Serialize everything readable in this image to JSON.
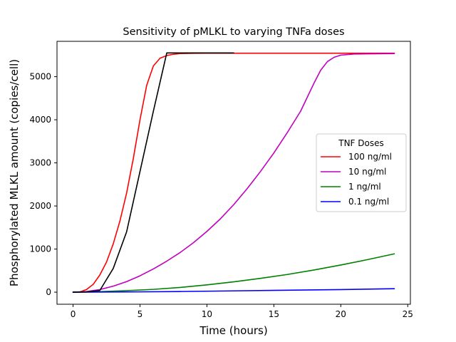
{
  "chart_data": {
    "type": "line",
    "title": "Sensitivity of pMLKL to varying TNFa doses",
    "xlabel": "Time (hours)",
    "ylabel": "Phosphorylated MLKL amount (copies/cell)",
    "xlim": [
      -1.2,
      25.2
    ],
    "ylim": [
      -280,
      5820
    ],
    "xticks": [
      0,
      5,
      10,
      15,
      20,
      25
    ],
    "yticks": [
      0,
      1000,
      2000,
      3000,
      4000,
      5000
    ],
    "grid": false,
    "legend": {
      "title": "TNF Doses",
      "placement": "center-right",
      "entries": [
        "100 ng/ml",
        "10 ng/ml",
        "1 ng/ml",
        "0.1 ng/ml"
      ]
    },
    "series": [
      {
        "name": "100 ng/ml",
        "color": "#ff0000",
        "x": [
          0,
          0.5,
          1,
          1.5,
          2,
          2.5,
          3,
          3.5,
          4,
          4.5,
          5,
          5.5,
          6,
          6.5,
          7,
          7.5,
          8,
          9,
          10,
          12,
          15,
          20,
          24
        ],
        "y": [
          0,
          5,
          60,
          180,
          400,
          700,
          1120,
          1650,
          2300,
          3100,
          4000,
          4800,
          5250,
          5430,
          5490,
          5520,
          5535,
          5542,
          5545,
          5545,
          5545,
          5545,
          5545
        ]
      },
      {
        "name": "10 ng/ml",
        "color": "#bf00bf",
        "x": [
          0,
          1,
          2,
          3,
          4,
          5,
          6,
          7,
          8,
          9,
          10,
          11,
          12,
          13,
          14,
          15,
          16,
          17,
          18,
          18.5,
          19,
          19.5,
          20,
          21,
          22,
          24
        ],
        "y": [
          0,
          15,
          60,
          140,
          245,
          380,
          540,
          720,
          920,
          1150,
          1410,
          1700,
          2030,
          2400,
          2800,
          3230,
          3700,
          4200,
          4850,
          5150,
          5350,
          5450,
          5500,
          5525,
          5530,
          5535
        ]
      },
      {
        "name": "1 ng/ml",
        "color": "#008000",
        "x": [
          0,
          2,
          4,
          6,
          8,
          10,
          12,
          14,
          16,
          18,
          20,
          22,
          24
        ],
        "y": [
          0,
          12,
          35,
          65,
          110,
          170,
          240,
          320,
          410,
          515,
          630,
          755,
          890
        ]
      },
      {
        "name": "0.1 ng/ml",
        "color": "#0000ff",
        "x": [
          0,
          4,
          8,
          12,
          16,
          20,
          24
        ],
        "y": [
          0,
          5,
          15,
          30,
          45,
          60,
          80
        ]
      },
      {
        "color": "#000000",
        "x": [
          0,
          1,
          2,
          3,
          4,
          5,
          6,
          7,
          8,
          9,
          10,
          11,
          12
        ],
        "y": [
          0,
          5,
          40,
          550,
          1400,
          2800,
          4200,
          5550,
          5550,
          5550,
          5550,
          5550,
          5550
        ]
      }
    ]
  }
}
